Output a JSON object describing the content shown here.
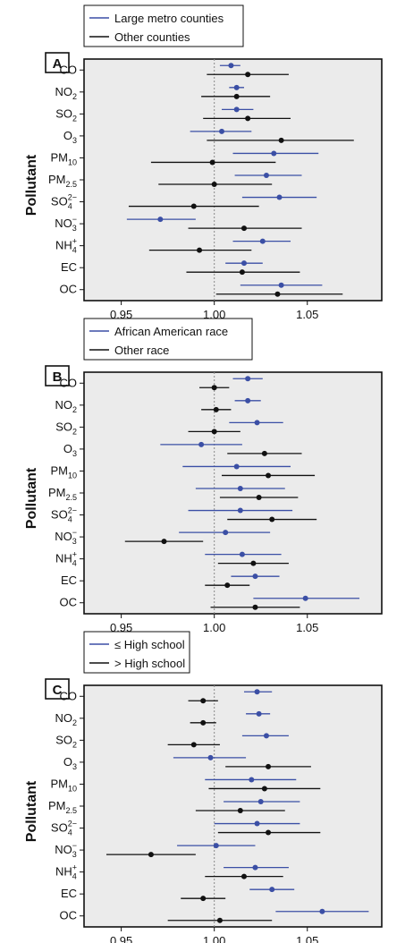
{
  "colors": {
    "blue": "#3b4fa5",
    "black": "#111111",
    "plot_bg": "#ebebeb",
    "refline": "#8a8a8a"
  },
  "chart_data": [
    {
      "type": "scatter",
      "panel_label": "A",
      "ylabel": "Pollutant",
      "xlim": [
        0.93,
        1.09
      ],
      "xticks": [
        "0.95",
        "1.00",
        "1.05"
      ],
      "reference_line": 1.0,
      "grid": false,
      "legend_position": "top-left, outside plot",
      "categories": [
        "CO",
        "NO2",
        "SO2",
        "O3",
        "PM10",
        "PM2.5",
        "SO4 2−",
        "NO3 −",
        "NH4 +",
        "EC",
        "OC"
      ],
      "series": [
        {
          "name": "Large metro counties",
          "color": "blue",
          "estimate": [
            1.009,
            1.012,
            1.012,
            1.004,
            1.032,
            1.028,
            1.035,
            0.971,
            1.026,
            1.016,
            1.036
          ],
          "lower": [
            1.003,
            1.008,
            1.004,
            0.987,
            1.01,
            1.011,
            1.015,
            0.953,
            1.01,
            1.006,
            1.014
          ],
          "upper": [
            1.014,
            1.016,
            1.021,
            1.02,
            1.056,
            1.047,
            1.055,
            0.99,
            1.041,
            1.026,
            1.058
          ]
        },
        {
          "name": "Other counties",
          "color": "black",
          "estimate": [
            1.018,
            1.012,
            1.018,
            1.036,
            0.999,
            1.0,
            0.989,
            1.016,
            0.992,
            1.015,
            1.034
          ],
          "lower": [
            0.996,
            0.993,
            0.994,
            0.996,
            0.966,
            0.97,
            0.954,
            0.986,
            0.965,
            0.985,
            1.001
          ],
          "upper": [
            1.04,
            1.03,
            1.041,
            1.075,
            1.033,
            1.031,
            1.024,
            1.047,
            1.02,
            1.046,
            1.069
          ]
        }
      ]
    },
    {
      "type": "scatter",
      "panel_label": "B",
      "ylabel": "Pollutant",
      "xlim": [
        0.93,
        1.09
      ],
      "xticks": [
        "0.95",
        "1.00",
        "1.05"
      ],
      "reference_line": 1.0,
      "grid": false,
      "legend_position": "top-left, outside plot",
      "categories": [
        "CO",
        "NO2",
        "SO2",
        "O3",
        "PM10",
        "PM2.5",
        "SO4 2−",
        "NO3 −",
        "NH4 +",
        "EC",
        "OC"
      ],
      "series": [
        {
          "name": "African American race",
          "color": "blue",
          "estimate": [
            1.018,
            1.018,
            1.023,
            0.993,
            1.012,
            1.014,
            1.014,
            1.006,
            1.015,
            1.022,
            1.049
          ],
          "lower": [
            1.01,
            1.011,
            1.008,
            0.971,
            0.983,
            0.99,
            0.986,
            0.981,
            0.995,
            1.009,
            1.021
          ],
          "upper": [
            1.026,
            1.025,
            1.037,
            1.015,
            1.041,
            1.038,
            1.042,
            1.03,
            1.036,
            1.035,
            1.078
          ]
        },
        {
          "name": "Other race",
          "color": "black",
          "estimate": [
            1.0,
            1.001,
            1.0,
            1.027,
            1.029,
            1.024,
            1.031,
            0.973,
            1.021,
            1.007,
            1.022
          ],
          "lower": [
            0.992,
            0.993,
            0.986,
            1.007,
            1.004,
            1.003,
            1.007,
            0.952,
            1.002,
            0.995,
            0.998
          ],
          "upper": [
            1.008,
            1.009,
            1.014,
            1.047,
            1.054,
            1.045,
            1.055,
            0.994,
            1.04,
            1.019,
            1.046
          ]
        }
      ]
    },
    {
      "type": "scatter",
      "panel_label": "C",
      "ylabel": "Pollutant",
      "xlim": [
        0.93,
        1.09
      ],
      "xticks": [
        "0.95",
        "1.00",
        "1.05"
      ],
      "reference_line": 1.0,
      "grid": false,
      "legend_position": "top-left, outside plot",
      "categories": [
        "CO",
        "NO2",
        "SO2",
        "O3",
        "PM10",
        "PM2.5",
        "SO4 2−",
        "NO3 −",
        "NH4 +",
        "EC",
        "OC"
      ],
      "series": [
        {
          "name": "≤ High school",
          "color": "blue",
          "estimate": [
            1.023,
            1.024,
            1.028,
            0.998,
            1.02,
            1.025,
            1.023,
            1.001,
            1.022,
            1.031,
            1.058
          ],
          "lower": [
            1.016,
            1.017,
            1.015,
            0.978,
            0.995,
            1.005,
            1.0,
            0.98,
            1.005,
            1.019,
            1.033
          ],
          "upper": [
            1.031,
            1.03,
            1.04,
            1.017,
            1.044,
            1.046,
            1.046,
            1.022,
            1.04,
            1.043,
            1.083
          ]
        },
        {
          "name": "> High school",
          "color": "black",
          "estimate": [
            0.994,
            0.994,
            0.989,
            1.029,
            1.027,
            1.014,
            1.029,
            0.966,
            1.016,
            0.994,
            1.003
          ],
          "lower": [
            0.986,
            0.987,
            0.975,
            1.006,
            0.997,
            0.99,
            1.002,
            0.942,
            0.995,
            0.982,
            0.975
          ],
          "upper": [
            1.002,
            1.001,
            1.003,
            1.052,
            1.057,
            1.038,
            1.057,
            0.99,
            1.037,
            1.006,
            1.031
          ]
        }
      ]
    }
  ]
}
